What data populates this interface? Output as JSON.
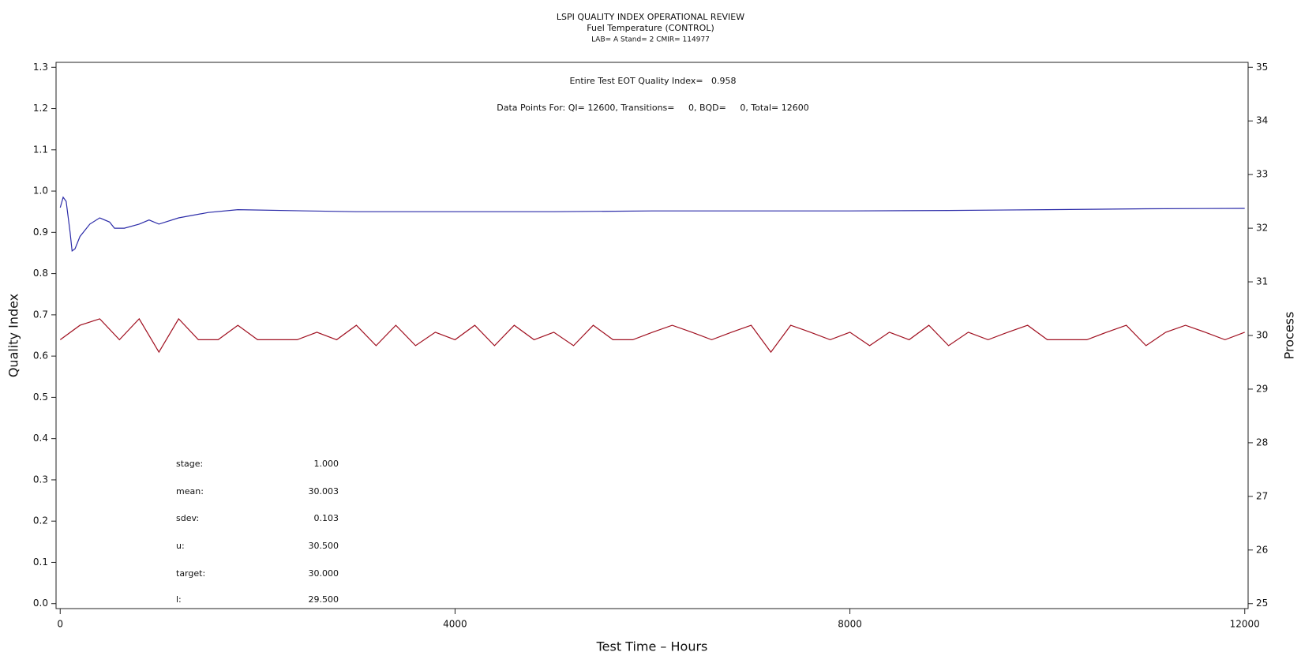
{
  "chart_data": {
    "type": "line",
    "title": "LSPI QUALITY INDEX OPERATIONAL REVIEW",
    "subtitle": "Fuel Temperature (CONTROL)",
    "subtitle2": "LAB= A Stand= 2 CMIR= 114977",
    "x_label": "Test Time – Hours",
    "y_label": "Quality Index",
    "y2_label": "Process",
    "annotations": [
      "Entire Test EOT Quality Index=   0.958",
      "Data Points For: QI= 12600, Transitions=     0, BQD=     0, Total= 12600"
    ],
    "stats": [
      {
        "label": "stage:",
        "value": "1.000"
      },
      {
        "label": "mean:",
        "value": "30.003"
      },
      {
        "label": "sdev:",
        "value": "0.103"
      },
      {
        "label": "u:",
        "value": "30.500"
      },
      {
        "label": "target:",
        "value": "30.000"
      },
      {
        "label": "l:",
        "value": "29.500"
      }
    ],
    "xlim": [
      -42,
      12034
    ],
    "xticks": [
      0,
      4000,
      8000,
      12000
    ],
    "ylim": [
      -0.012,
      1.312
    ],
    "yticks": [
      {
        "value": 0,
        "label": "0.0"
      },
      0.1,
      0.2,
      0.3,
      0.4,
      0.5,
      0.6,
      0.7,
      0.8,
      0.9,
      {
        "value": 1,
        "label": "1.0"
      },
      1.1,
      1.2,
      1.3
    ],
    "y2lim": [
      24.908,
      35.092
    ],
    "y2ticks": [
      25,
      26,
      27,
      28,
      29,
      30,
      31,
      32,
      33,
      34,
      35
    ],
    "series": [
      {
        "color": "#2b2ba8",
        "x": [
          0,
          30,
          60,
          100,
          120,
          150,
          200,
          300,
          400,
          500,
          550,
          650,
          800,
          900,
          1000,
          1200,
          1500,
          1800,
          2500,
          3000,
          4000,
          5000,
          6000,
          7000,
          8000,
          9000,
          10000,
          11000,
          12000
        ],
        "values": [
          0.96,
          0.985,
          0.975,
          0.9,
          0.855,
          0.86,
          0.89,
          0.92,
          0.935,
          0.925,
          0.91,
          0.91,
          0.92,
          0.93,
          0.92,
          0.935,
          0.948,
          0.955,
          0.952,
          0.95,
          0.95,
          0.95,
          0.952,
          0.952,
          0.952,
          0.953,
          0.955,
          0.957,
          0.958
        ]
      },
      {
        "color": "#a01020",
        "axis": "y2",
        "x": [
          0,
          200,
          400,
          600,
          800,
          1000,
          1200,
          1400,
          1600,
          1800,
          2000,
          2200,
          2400,
          2600,
          2800,
          3000,
          3200,
          3400,
          3600,
          3800,
          4000,
          4200,
          4400,
          4600,
          4800,
          5000,
          5200,
          5400,
          5600,
          5800,
          6000,
          6200,
          6400,
          6600,
          6800,
          7000,
          7200,
          7400,
          7600,
          7800,
          8000,
          8200,
          8400,
          8600,
          8800,
          9000,
          9200,
          9400,
          9600,
          9800,
          10000,
          10200,
          10400,
          10600,
          10800,
          11000,
          11200,
          11400,
          11600,
          11800,
          12000
        ],
        "values": [
          29.92,
          30.19,
          30.31,
          29.92,
          30.31,
          29.69,
          30.31,
          29.92,
          29.92,
          30.19,
          29.92,
          29.92,
          29.92,
          30.06,
          29.92,
          30.19,
          29.81,
          30.19,
          29.81,
          30.06,
          29.92,
          30.19,
          29.81,
          30.19,
          29.92,
          30.06,
          29.81,
          30.19,
          29.92,
          29.92,
          30.06,
          30.19,
          30.06,
          29.92,
          30.06,
          30.19,
          29.69,
          30.19,
          30.06,
          29.92,
          30.06,
          29.81,
          30.06,
          29.92,
          30.19,
          29.81,
          30.06,
          29.92,
          30.06,
          30.19,
          29.92,
          29.92,
          29.92,
          30.06,
          30.19,
          29.81,
          30.06,
          30.19,
          30.06,
          29.92,
          30.06
        ]
      }
    ]
  }
}
